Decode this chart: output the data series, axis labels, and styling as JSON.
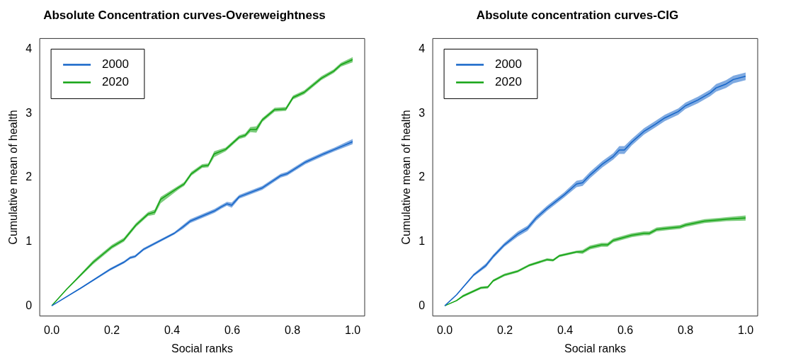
{
  "chart_data": [
    {
      "type": "line",
      "title": "Absolute Concentration curves-Overeweightness",
      "xlabel": "Social ranks",
      "ylabel": "Cumulative mean of health",
      "xlim": [
        -0.04,
        1.04
      ],
      "ylim": [
        -0.16,
        4.17
      ],
      "xticks": [
        {
          "value": 0,
          "label": "0.0"
        },
        {
          "value": 0.2,
          "label": "0.2"
        },
        {
          "value": 0.4,
          "label": "0.4"
        },
        {
          "value": 0.6,
          "label": "0.6"
        },
        {
          "value": 0.8,
          "label": "0.8"
        },
        {
          "value": 1,
          "label": "1.0"
        }
      ],
      "yticks": [
        0,
        1,
        2,
        3,
        4
      ],
      "grid": false,
      "legend": "top left",
      "marker": "none",
      "line_style": "solid",
      "series": [
        {
          "name": "2000",
          "color": "#1565c8",
          "x": [
            0,
            0.098,
            0.195,
            0.24,
            0.261,
            0.277,
            0.305,
            0.407,
            0.436,
            0.46,
            0.541,
            0.562,
            0.582,
            0.598,
            0.623,
            0.7,
            0.761,
            0.782,
            0.843,
            0.904,
            0.94,
            1
          ],
          "values": [
            0,
            0.28,
            0.57,
            0.68,
            0.75,
            0.77,
            0.88,
            1.13,
            1.23,
            1.32,
            1.48,
            1.54,
            1.59,
            1.57,
            1.7,
            1.84,
            2.03,
            2.06,
            2.24,
            2.37,
            2.44,
            2.56
          ],
          "lower": [
            0,
            0.27,
            0.55,
            0.66,
            0.73,
            0.75,
            0.86,
            1.11,
            1.2,
            1.29,
            1.45,
            1.51,
            1.56,
            1.53,
            1.67,
            1.81,
            2,
            2.03,
            2.21,
            2.34,
            2.41,
            2.52
          ],
          "upper": [
            0,
            0.29,
            0.59,
            0.7,
            0.77,
            0.79,
            0.9,
            1.15,
            1.26,
            1.35,
            1.51,
            1.57,
            1.62,
            1.61,
            1.73,
            1.87,
            2.06,
            2.09,
            2.27,
            2.4,
            2.47,
            2.6
          ]
        },
        {
          "name": "2020",
          "color": "#12a312",
          "x": [
            0,
            0.05,
            0.138,
            0.2,
            0.24,
            0.28,
            0.32,
            0.342,
            0.362,
            0.42,
            0.44,
            0.464,
            0.5,
            0.52,
            0.54,
            0.578,
            0.623,
            0.643,
            0.66,
            0.68,
            0.7,
            0.741,
            0.778,
            0.802,
            0.839,
            0.896,
            0.937,
            0.961,
            1
          ],
          "values": [
            0,
            0.26,
            0.68,
            0.92,
            1.03,
            1.26,
            1.43,
            1.46,
            1.66,
            1.84,
            1.9,
            2.06,
            2.18,
            2.19,
            2.37,
            2.44,
            2.63,
            2.66,
            2.75,
            2.75,
            2.9,
            3.06,
            3.07,
            3.25,
            3.33,
            3.55,
            3.66,
            3.76,
            3.84
          ],
          "lower": [
            0,
            0.25,
            0.65,
            0.89,
            1,
            1.23,
            1.4,
            1.42,
            1.6,
            1.81,
            1.87,
            2.03,
            2.15,
            2.16,
            2.32,
            2.41,
            2.6,
            2.63,
            2.71,
            2.7,
            2.87,
            3.03,
            3.04,
            3.22,
            3.3,
            3.52,
            3.63,
            3.73,
            3.8
          ],
          "upper": [
            0,
            0.27,
            0.71,
            0.95,
            1.06,
            1.29,
            1.46,
            1.5,
            1.7,
            1.87,
            1.93,
            2.09,
            2.21,
            2.22,
            2.41,
            2.47,
            2.66,
            2.69,
            2.79,
            2.8,
            2.93,
            3.09,
            3.1,
            3.28,
            3.36,
            3.58,
            3.69,
            3.79,
            3.88
          ]
        }
      ]
    },
    {
      "type": "line",
      "title": "Absolute concentration curves-CIG",
      "xlabel": "Social ranks",
      "ylabel": "Cumulative mean of health",
      "xlim": [
        -0.04,
        1.04
      ],
      "ylim": [
        -0.16,
        4.17
      ],
      "xticks": [
        {
          "value": 0,
          "label": "0.0"
        },
        {
          "value": 0.2,
          "label": "0.2"
        },
        {
          "value": 0.4,
          "label": "0.4"
        },
        {
          "value": 0.6,
          "label": "0.6"
        },
        {
          "value": 0.8,
          "label": "0.8"
        },
        {
          "value": 1,
          "label": "1.0"
        }
      ],
      "yticks": [
        0,
        1,
        2,
        3,
        4
      ],
      "grid": false,
      "legend": "top left",
      "marker": "none",
      "line_style": "solid",
      "series": [
        {
          "name": "2000",
          "color": "#1565c8",
          "x": [
            0,
            0.039,
            0.096,
            0.137,
            0.161,
            0.198,
            0.243,
            0.275,
            0.304,
            0.34,
            0.397,
            0.438,
            0.458,
            0.483,
            0.524,
            0.56,
            0.58,
            0.597,
            0.621,
            0.662,
            0.699,
            0.731,
            0.776,
            0.8,
            0.841,
            0.882,
            0.902,
            0.935,
            0.959,
            1
          ],
          "values": [
            0,
            0.17,
            0.48,
            0.63,
            0.77,
            0.95,
            1.12,
            1.21,
            1.37,
            1.52,
            1.73,
            1.9,
            1.92,
            2.04,
            2.21,
            2.33,
            2.43,
            2.43,
            2.55,
            2.72,
            2.83,
            2.93,
            3.03,
            3.12,
            3.21,
            3.32,
            3.4,
            3.46,
            3.53,
            3.58
          ],
          "lower": [
            0,
            0.16,
            0.46,
            0.6,
            0.74,
            0.92,
            1.08,
            1.17,
            1.33,
            1.48,
            1.69,
            1.85,
            1.87,
            1.99,
            2.16,
            2.28,
            2.37,
            2.37,
            2.5,
            2.67,
            2.78,
            2.88,
            2.98,
            3.07,
            3.16,
            3.27,
            3.34,
            3.4,
            3.47,
            3.52
          ],
          "upper": [
            0,
            0.18,
            0.5,
            0.66,
            0.8,
            0.98,
            1.16,
            1.25,
            1.41,
            1.56,
            1.77,
            1.95,
            1.97,
            2.09,
            2.26,
            2.38,
            2.49,
            2.49,
            2.6,
            2.77,
            2.88,
            2.98,
            3.08,
            3.17,
            3.26,
            3.37,
            3.46,
            3.52,
            3.59,
            3.64
          ]
        },
        {
          "name": "2020",
          "color": "#12a312",
          "x": [
            0,
            0.039,
            0.06,
            0.12,
            0.143,
            0.161,
            0.198,
            0.243,
            0.28,
            0.34,
            0.36,
            0.381,
            0.438,
            0.458,
            0.483,
            0.521,
            0.541,
            0.56,
            0.621,
            0.662,
            0.68,
            0.704,
            0.741,
            0.782,
            0.8,
            0.863,
            0.935,
            1
          ],
          "values": [
            0,
            0.08,
            0.15,
            0.28,
            0.29,
            0.39,
            0.48,
            0.54,
            0.63,
            0.72,
            0.71,
            0.78,
            0.84,
            0.84,
            0.91,
            0.95,
            0.95,
            1.02,
            1.1,
            1.13,
            1.13,
            1.19,
            1.21,
            1.23,
            1.26,
            1.32,
            1.35,
            1.37
          ],
          "lower": [
            0,
            0.07,
            0.13,
            0.26,
            0.27,
            0.37,
            0.46,
            0.52,
            0.61,
            0.7,
            0.69,
            0.76,
            0.82,
            0.81,
            0.88,
            0.92,
            0.92,
            0.99,
            1.07,
            1.1,
            1.1,
            1.16,
            1.18,
            1.2,
            1.23,
            1.29,
            1.32,
            1.33
          ],
          "upper": [
            0,
            0.09,
            0.17,
            0.3,
            0.31,
            0.41,
            0.5,
            0.56,
            0.65,
            0.74,
            0.73,
            0.8,
            0.86,
            0.87,
            0.94,
            0.98,
            0.98,
            1.05,
            1.13,
            1.16,
            1.16,
            1.22,
            1.24,
            1.26,
            1.29,
            1.35,
            1.38,
            1.41
          ]
        }
      ]
    }
  ]
}
